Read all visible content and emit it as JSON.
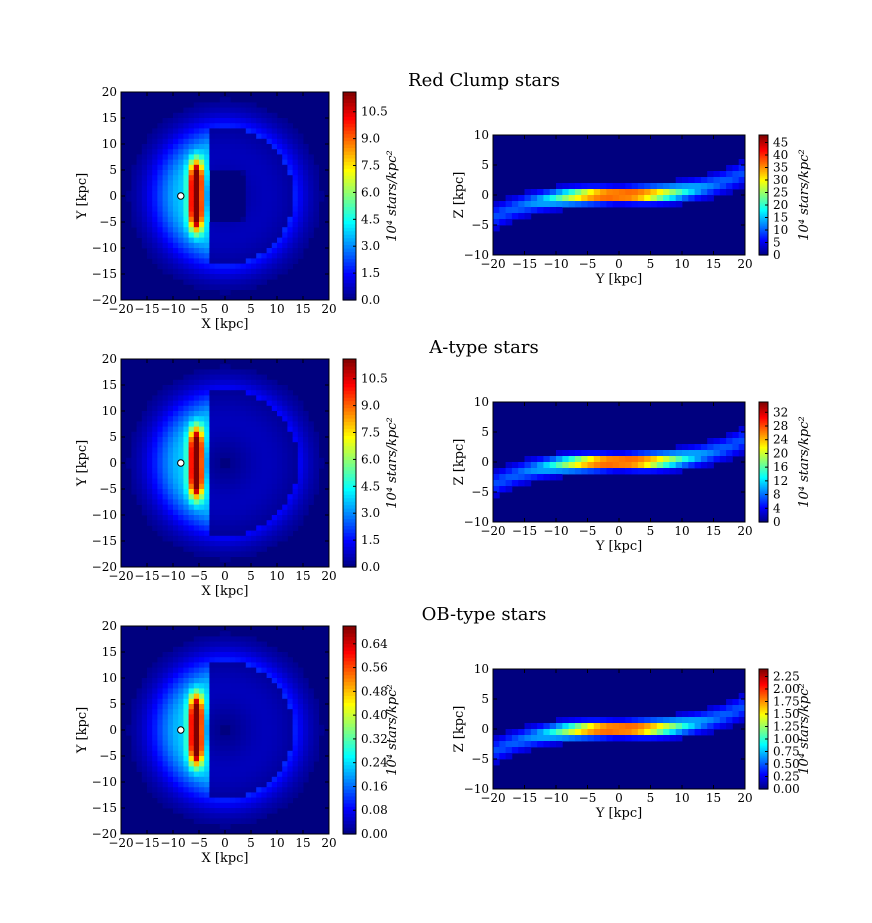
{
  "figure": {
    "background": "#ffffff"
  },
  "colormap": [
    "#00007f",
    "#0000ff",
    "#007fff",
    "#00ffff",
    "#7fff7f",
    "#ffff00",
    "#ff7f00",
    "#ff0000",
    "#7f0000"
  ],
  "chart_data": [
    {
      "row_title": "Red Clump stars",
      "xy": {
        "type": "heatmap",
        "xlabel": "X [kpc]",
        "ylabel": "Y [kpc]",
        "xlim": [
          -20,
          20
        ],
        "ylim": [
          -20,
          20
        ],
        "xticks": [
          -20,
          -15,
          -10,
          -5,
          0,
          5,
          10,
          15,
          20
        ],
        "yticks": [
          -20,
          -15,
          -10,
          -5,
          0,
          5,
          10,
          15,
          20
        ],
        "sun_marker": {
          "x": -8.5,
          "y": 0
        },
        "colorbar": {
          "label": "10⁴ stars/kpc²",
          "ticks": [
            "0.0",
            "1.5",
            "3.0",
            "4.5",
            "6.0",
            "7.5",
            "9.0",
            "10.5"
          ],
          "tick_values": [
            0,
            1.5,
            3.0,
            4.5,
            6.0,
            7.5,
            9.0,
            10.5
          ],
          "vmax": 11.6
        },
        "structure": {
          "ring_outer_kpc": 20,
          "ring_inner_kpc": 13,
          "peak_x": -5.5,
          "bulge": true
        }
      },
      "yz": {
        "type": "heatmap",
        "xlabel": "Y [kpc]",
        "ylabel": "Z [kpc]",
        "xlim": [
          -20,
          20
        ],
        "ylim": [
          -10,
          10
        ],
        "xticks": [
          -20,
          -15,
          -10,
          -5,
          0,
          5,
          10,
          15,
          20
        ],
        "yticks": [
          -10,
          -5,
          0,
          5,
          10
        ],
        "colorbar": {
          "label": "10⁴ stars/kpc²",
          "ticks": [
            "0",
            "5",
            "10",
            "15",
            "20",
            "25",
            "30",
            "35",
            "40",
            "45"
          ],
          "tick_values": [
            0,
            5,
            10,
            15,
            20,
            25,
            30,
            35,
            40,
            45
          ],
          "vmax": 48
        }
      }
    },
    {
      "row_title": "A-type stars",
      "xy": {
        "type": "heatmap",
        "xlabel": "X [kpc]",
        "ylabel": "Y [kpc]",
        "xlim": [
          -20,
          20
        ],
        "ylim": [
          -20,
          20
        ],
        "xticks": [
          -20,
          -15,
          -10,
          -5,
          0,
          5,
          10,
          15,
          20
        ],
        "yticks": [
          -20,
          -15,
          -10,
          -5,
          0,
          5,
          10,
          15,
          20
        ],
        "sun_marker": {
          "x": -8.5,
          "y": 0
        },
        "colorbar": {
          "label": "10⁴ stars/kpc²",
          "ticks": [
            "0.0",
            "1.5",
            "3.0",
            "4.5",
            "6.0",
            "7.5",
            "9.0",
            "10.5"
          ],
          "tick_values": [
            0,
            1.5,
            3.0,
            4.5,
            6.0,
            7.5,
            9.0,
            10.5
          ],
          "vmax": 11.6
        },
        "structure": {
          "ring_outer_kpc": 20,
          "ring_inner_kpc": 14,
          "peak_x": -5.5,
          "bulge": false
        }
      },
      "yz": {
        "type": "heatmap",
        "xlabel": "Y [kpc]",
        "ylabel": "Z [kpc]",
        "xlim": [
          -20,
          20
        ],
        "ylim": [
          -10,
          10
        ],
        "xticks": [
          -20,
          -15,
          -10,
          -5,
          0,
          5,
          10,
          15,
          20
        ],
        "yticks": [
          -10,
          -5,
          0,
          5,
          10
        ],
        "colorbar": {
          "label": "10⁴ stars/kpc²",
          "ticks": [
            "0",
            "4",
            "8",
            "12",
            "16",
            "20",
            "24",
            "28",
            "32"
          ],
          "tick_values": [
            0,
            4,
            8,
            12,
            16,
            20,
            24,
            28,
            32
          ],
          "vmax": 35
        }
      }
    },
    {
      "row_title": "OB-type stars",
      "xy": {
        "type": "heatmap",
        "xlabel": "X [kpc]",
        "ylabel": "Y [kpc]",
        "xlim": [
          -20,
          20
        ],
        "ylim": [
          -20,
          20
        ],
        "xticks": [
          -20,
          -15,
          -10,
          -5,
          0,
          5,
          10,
          15,
          20
        ],
        "yticks": [
          -20,
          -15,
          -10,
          -5,
          0,
          5,
          10,
          15,
          20
        ],
        "sun_marker": {
          "x": -8.5,
          "y": 0
        },
        "colorbar": {
          "label": "10⁴ stars/kpc²",
          "ticks": [
            "0.00",
            "0.08",
            "0.16",
            "0.24",
            "0.32",
            "0.40",
            "0.48",
            "0.56",
            "0.64"
          ],
          "tick_values": [
            0,
            0.08,
            0.16,
            0.24,
            0.32,
            0.4,
            0.48,
            0.56,
            0.64
          ],
          "vmax": 0.7
        },
        "structure": {
          "ring_outer_kpc": 19,
          "ring_inner_kpc": 13,
          "peak_x": -5.5,
          "bulge": false
        }
      },
      "yz": {
        "type": "heatmap",
        "xlabel": "Y [kpc]",
        "ylabel": "Z [kpc]",
        "xlim": [
          -20,
          20
        ],
        "ylim": [
          -10,
          10
        ],
        "xticks": [
          -20,
          -15,
          -10,
          -5,
          0,
          5,
          10,
          15,
          20
        ],
        "yticks": [
          -10,
          -5,
          0,
          5,
          10
        ],
        "colorbar": {
          "label": "10⁴ stars/kpc²",
          "ticks": [
            "0.00",
            "0.25",
            "0.50",
            "0.75",
            "1.00",
            "1.25",
            "1.50",
            "1.75",
            "2.00",
            "2.25"
          ],
          "tick_values": [
            0,
            0.25,
            0.5,
            0.75,
            1.0,
            1.25,
            1.5,
            1.75,
            2.0,
            2.25
          ],
          "vmax": 2.4
        }
      }
    }
  ]
}
